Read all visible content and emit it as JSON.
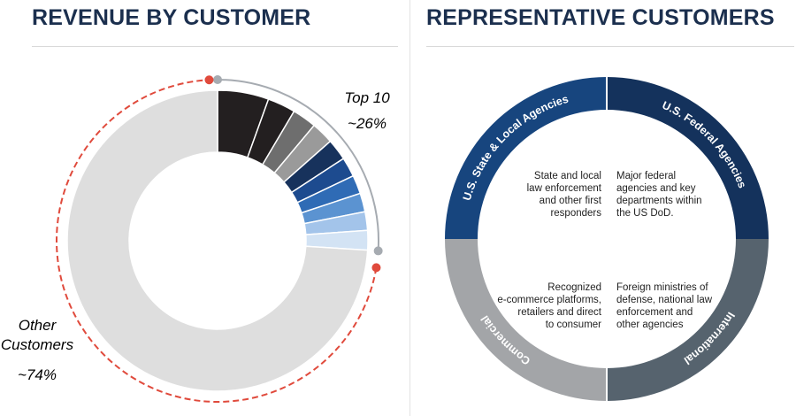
{
  "left_panel": {
    "title": "REVENUE BY CUSTOMER"
  },
  "right_panel": {
    "title": "REPRESENTATIVE CUSTOMERS"
  },
  "chart_data": [
    {
      "type": "pie",
      "title": "REVENUE BY CUSTOMER",
      "donut": true,
      "annotations": {
        "top10": {
          "line1": "Top 10",
          "line2": "~26%",
          "color": "#1b3a6b"
        },
        "other": {
          "line1": "Other",
          "line2": "Customers",
          "line3": "~74%",
          "color": "#e04a3c"
        }
      },
      "slices": [
        {
          "group": "Top 10",
          "value": 5.5,
          "color": "#231f20"
        },
        {
          "group": "Top 10",
          "value": 3.0,
          "color": "#231f20"
        },
        {
          "group": "Top 10",
          "value": 2.6,
          "color": "#6e6e6e"
        },
        {
          "group": "Top 10",
          "value": 2.4,
          "color": "#9a9a9a"
        },
        {
          "group": "Top 10",
          "value": 2.3,
          "color": "#17325c"
        },
        {
          "group": "Top 10",
          "value": 2.1,
          "color": "#1d4b8f"
        },
        {
          "group": "Top 10",
          "value": 2.0,
          "color": "#2f6bb5"
        },
        {
          "group": "Top 10",
          "value": 2.0,
          "color": "#5b93d1"
        },
        {
          "group": "Top 10",
          "value": 2.0,
          "color": "#a3c4ea"
        },
        {
          "group": "Top 10",
          "value": 2.1,
          "color": "#d3e3f4"
        },
        {
          "group": "Other Customers",
          "value": 74,
          "color": "#dedede"
        }
      ]
    }
  ],
  "segments": [
    {
      "label": "U.S. State & Local Agencies",
      "description": [
        "State and local",
        "law enforcement",
        "and other first",
        "responders"
      ],
      "color": "#17457e"
    },
    {
      "label": "U.S. Federal Agencies",
      "description": [
        "Major federal",
        "agencies and key",
        "departments within",
        "the US DoD."
      ],
      "color": "#14325c"
    },
    {
      "label": "Commercial",
      "description": [
        "Recognized",
        "e-commerce platforms,",
        "retailers and direct",
        "to consumer"
      ],
      "color": "#a3a5a8"
    },
    {
      "label": "International",
      "description": [
        "Foreign ministries of",
        "defense, national law",
        "enforcement and",
        "other agencies"
      ],
      "color": "#56636e"
    }
  ]
}
